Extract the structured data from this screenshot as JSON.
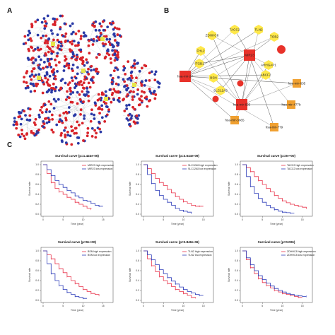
{
  "figure": {
    "panel_labels": [
      "A",
      "B",
      "C"
    ],
    "colors": {
      "red_node": "#d8232a",
      "blue_node": "#2a3aa6",
      "yellow_node": "#ffe84a",
      "hub_red": "#e8322a",
      "orange_node": "#f0a030",
      "curve_high": "#e8334a",
      "curve_low": "#2a3ab8"
    }
  },
  "network_b": {
    "hub_nodes": [
      "MIR23",
      "hsa-mir-27",
      "hsa-mir-635"
    ],
    "nodes": [
      {
        "label": "TACC2"
      },
      {
        "label": "TLN2"
      },
      {
        "label": "ZDHHC8"
      },
      {
        "label": "TOB2"
      },
      {
        "label": "FHL2"
      },
      {
        "label": "ARHGAP1"
      },
      {
        "label": "ITGB1"
      },
      {
        "label": "ABCF2"
      },
      {
        "label": "BSN"
      },
      {
        "label": "SLC12A5"
      },
      {
        "label": "hsa-mir-635"
      },
      {
        "label": "hsa-mir-477b"
      },
      {
        "label": "hsa-mir-779"
      },
      {
        "label": "hsa-mir-3665"
      }
    ]
  },
  "chart_data": [
    {
      "type": "line",
      "title": "Survival curve (p=1.424e-06)",
      "xlabel": "Time (year)",
      "ylabel": "Survival rate",
      "xlim": [
        0,
        17
      ],
      "ylim": [
        0,
        1.0
      ],
      "xticks": [
        0,
        5,
        10,
        15
      ],
      "yticks": [
        0,
        0.2,
        0.4,
        0.6,
        0.8,
        1.0
      ],
      "legend_position": "top-right",
      "series": [
        {
          "name": "MIR23 high expression",
          "x": [
            0,
            1,
            2,
            3,
            4,
            5,
            6,
            7,
            8,
            9,
            10,
            11,
            12
          ],
          "y": [
            1.0,
            0.82,
            0.64,
            0.52,
            0.45,
            0.4,
            0.34,
            0.3,
            0.24,
            0.2,
            0.16,
            0.12,
            0.1
          ]
        },
        {
          "name": "MIR23 low expression",
          "x": [
            0,
            1,
            2,
            3,
            4,
            5,
            6,
            7,
            8,
            9,
            10,
            11,
            12,
            13,
            14,
            15
          ],
          "y": [
            1.0,
            0.9,
            0.78,
            0.68,
            0.6,
            0.54,
            0.48,
            0.43,
            0.37,
            0.33,
            0.28,
            0.26,
            0.22,
            0.18,
            0.16,
            0.16
          ]
        }
      ]
    },
    {
      "type": "line",
      "title": "Survival curve (p=3.644e-09)",
      "xlabel": "Time (year)",
      "ylabel": "Survival rate",
      "xlim": [
        0,
        17
      ],
      "ylim": [
        0,
        1.0
      ],
      "xticks": [
        0,
        5,
        10,
        15
      ],
      "yticks": [
        0,
        0.2,
        0.4,
        0.6,
        0.8,
        1.0
      ],
      "legend_position": "top-right",
      "series": [
        {
          "name": "SLC12A5 high expression",
          "x": [
            0,
            1,
            2,
            3,
            4,
            5,
            6,
            7,
            8,
            9,
            10,
            11,
            12,
            13,
            14,
            15
          ],
          "y": [
            1.0,
            0.92,
            0.82,
            0.72,
            0.64,
            0.58,
            0.5,
            0.43,
            0.36,
            0.3,
            0.25,
            0.22,
            0.18,
            0.16,
            0.16,
            0.16
          ]
        },
        {
          "name": "SLC12A5 low expression",
          "x": [
            0,
            1,
            2,
            3,
            4,
            5,
            6,
            7,
            8,
            9,
            10,
            11,
            12
          ],
          "y": [
            1.0,
            0.8,
            0.62,
            0.48,
            0.38,
            0.3,
            0.24,
            0.18,
            0.12,
            0.08,
            0.06,
            0.04,
            0.02
          ]
        }
      ]
    },
    {
      "type": "line",
      "title": "Survival curve (p=0e+00)",
      "xlabel": "Time (year)",
      "ylabel": "Survival rate",
      "xlim": [
        0,
        17
      ],
      "ylim": [
        0,
        1.0
      ],
      "xticks": [
        0,
        5,
        10,
        15
      ],
      "yticks": [
        0,
        0.2,
        0.4,
        0.6,
        0.8,
        1.0
      ],
      "legend_position": "top-right",
      "series": [
        {
          "name": "TACC2 high expression",
          "x": [
            0,
            1,
            2,
            3,
            4,
            5,
            6,
            7,
            8,
            9,
            10,
            11,
            12,
            13,
            14,
            15,
            16
          ],
          "y": [
            1.0,
            0.94,
            0.86,
            0.76,
            0.68,
            0.6,
            0.52,
            0.45,
            0.38,
            0.32,
            0.27,
            0.23,
            0.2,
            0.18,
            0.16,
            0.14,
            0.12
          ]
        },
        {
          "name": "TACC2 low expression",
          "x": [
            0,
            1,
            2,
            3,
            4,
            5,
            6,
            7,
            8,
            9,
            10,
            11,
            12,
            13
          ],
          "y": [
            1.0,
            0.76,
            0.56,
            0.42,
            0.32,
            0.24,
            0.18,
            0.13,
            0.09,
            0.06,
            0.04,
            0.03,
            0.02,
            0.02
          ]
        }
      ]
    },
    {
      "type": "line",
      "title": "Survival curve (p=0e+00)",
      "xlabel": "Time (year)",
      "ylabel": "Survival rate",
      "xlim": [
        0,
        17
      ],
      "ylim": [
        0,
        1.0
      ],
      "xticks": [
        0,
        5,
        10,
        15
      ],
      "yticks": [
        0,
        0.2,
        0.4,
        0.6,
        0.8,
        1.0
      ],
      "legend_position": "top-right",
      "series": [
        {
          "name": "BSN high expression",
          "x": [
            0,
            1,
            2,
            3,
            4,
            5,
            6,
            7,
            8,
            9,
            10,
            11,
            12,
            13,
            14
          ],
          "y": [
            1.0,
            0.92,
            0.84,
            0.74,
            0.64,
            0.56,
            0.48,
            0.4,
            0.34,
            0.28,
            0.22,
            0.18,
            0.14,
            0.12,
            0.1
          ]
        },
        {
          "name": "BSN low expression",
          "x": [
            0,
            1,
            2,
            3,
            4,
            5,
            6,
            7,
            8,
            9,
            10,
            11
          ],
          "y": [
            1.0,
            0.74,
            0.54,
            0.4,
            0.3,
            0.22,
            0.16,
            0.12,
            0.08,
            0.06,
            0.04,
            0.04
          ]
        }
      ]
    },
    {
      "type": "line",
      "title": "Survival curve (p=2.849e-06)",
      "xlabel": "Time (year)",
      "ylabel": "Survival rate",
      "xlim": [
        0,
        17
      ],
      "ylim": [
        0,
        1.0
      ],
      "xticks": [
        0,
        5,
        10,
        15
      ],
      "yticks": [
        0,
        0.2,
        0.4,
        0.6,
        0.8,
        1.0
      ],
      "legend_position": "top-right",
      "series": [
        {
          "name": "TLN2 high expression",
          "x": [
            0,
            1,
            2,
            3,
            4,
            5,
            6,
            7,
            8,
            9,
            10,
            11,
            12,
            13
          ],
          "y": [
            1.0,
            0.84,
            0.7,
            0.58,
            0.48,
            0.4,
            0.34,
            0.28,
            0.22,
            0.18,
            0.14,
            0.1,
            0.06,
            0.04
          ]
        },
        {
          "name": "TLN2 low expression",
          "x": [
            0,
            1,
            2,
            3,
            4,
            5,
            6,
            7,
            8,
            9,
            10,
            11,
            12,
            13,
            14,
            15
          ],
          "y": [
            1.0,
            0.92,
            0.82,
            0.72,
            0.62,
            0.54,
            0.46,
            0.39,
            0.33,
            0.27,
            0.22,
            0.18,
            0.15,
            0.12,
            0.1,
            0.1
          ]
        }
      ]
    },
    {
      "type": "line",
      "title": "Survival curve (p=0.006)",
      "xlabel": "Time (year)",
      "ylabel": "Survival rate",
      "xlim": [
        0,
        17
      ],
      "ylim": [
        0,
        1.0
      ],
      "xticks": [
        0,
        5,
        10,
        15
      ],
      "yticks": [
        0,
        0.2,
        0.4,
        0.6,
        0.8,
        1.0
      ],
      "legend_position": "top-right",
      "series": [
        {
          "name": "ZDHHC8 high expression",
          "x": [
            0,
            1,
            2,
            3,
            4,
            5,
            6,
            7,
            8,
            9,
            10,
            11,
            12,
            13,
            14,
            15
          ],
          "y": [
            1.0,
            0.82,
            0.66,
            0.54,
            0.44,
            0.36,
            0.3,
            0.25,
            0.2,
            0.17,
            0.14,
            0.12,
            0.1,
            0.08,
            0.06,
            0.06
          ]
        },
        {
          "name": "ZDHHC8 low expression",
          "x": [
            0,
            1,
            2,
            3,
            4,
            5,
            6,
            7,
            8,
            9,
            10,
            11,
            12,
            13,
            14,
            15,
            16
          ],
          "y": [
            1.0,
            0.86,
            0.72,
            0.6,
            0.5,
            0.42,
            0.35,
            0.29,
            0.24,
            0.2,
            0.17,
            0.14,
            0.12,
            0.1,
            0.09,
            0.08,
            0.08
          ]
        }
      ]
    }
  ]
}
